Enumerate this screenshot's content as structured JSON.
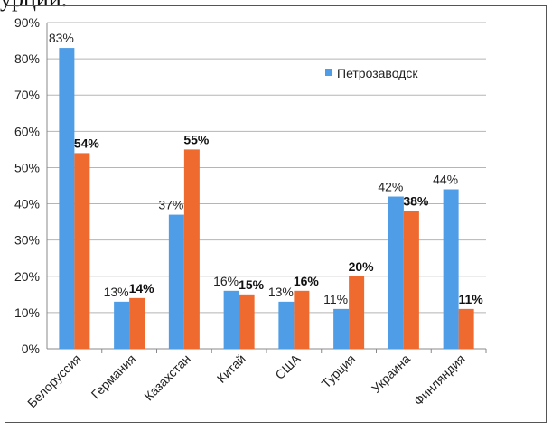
{
  "heading_fragment": "урции.",
  "legend": {
    "series_label": "Петрозаводск"
  },
  "colors": {
    "petrozavodsk": "#4f9de6",
    "series2": "#ee6a2e",
    "grid": "#b5b5b5",
    "axis": "#888888"
  },
  "chart_data": {
    "type": "bar",
    "categories": [
      "Белоруссия",
      "Германия",
      "Казахстан",
      "Китай",
      "США",
      "Турция",
      "Украина",
      "Финляндия"
    ],
    "series": [
      {
        "name": "Петрозаводск",
        "values": [
          83,
          13,
          37,
          16,
          13,
          11,
          42,
          44
        ],
        "labels": [
          "83%",
          "13%",
          "37%",
          "16%",
          "13%",
          "11%",
          "42%",
          "44%"
        ],
        "bold": false
      },
      {
        "values": [
          54,
          14,
          55,
          15,
          16,
          20,
          38,
          11
        ],
        "labels": [
          "54%",
          "14%",
          "55%",
          "15%",
          "16%",
          "20%",
          "38%",
          "11%"
        ],
        "bold": true
      }
    ],
    "y_ticks": [
      "0%",
      "10%",
      "20%",
      "30%",
      "40%",
      "50%",
      "60%",
      "70%",
      "80%",
      "90%"
    ],
    "ylim": [
      0,
      90
    ],
    "grid": true,
    "legend_position": "top-right"
  }
}
